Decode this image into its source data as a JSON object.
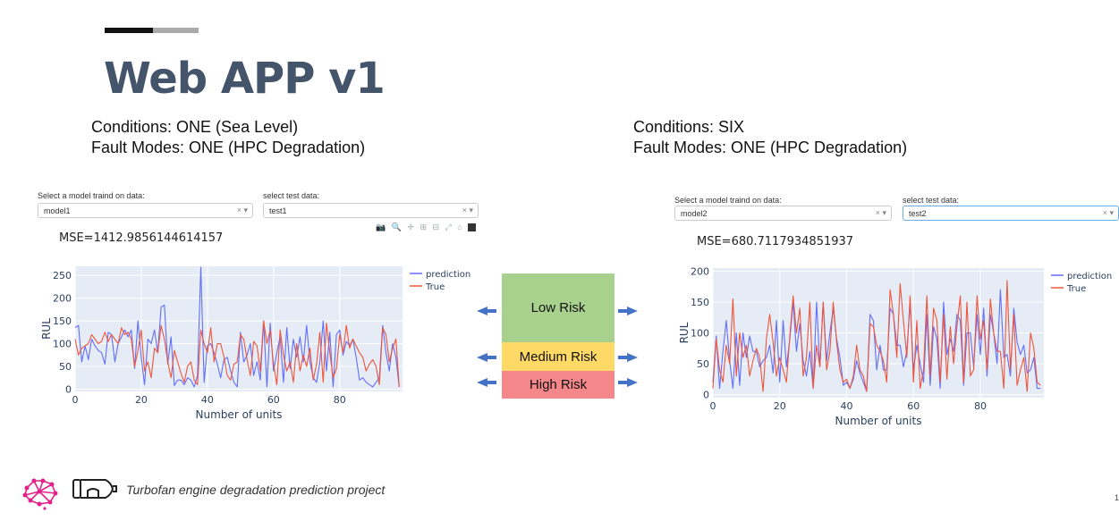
{
  "slide": {
    "title": "Web APP v1",
    "footer": "Turbofan engine degradation prediction project",
    "page_number": "1"
  },
  "left": {
    "conditions": "Conditions: ONE (Sea Level)",
    "fault_modes": "Fault Modes: ONE (HPC Degradation)",
    "model_label": "Select a model traind on data:",
    "model_value": "model1",
    "test_label": "select test data:",
    "test_value": "test1",
    "mse": "MSE=1412.9856144614157",
    "select_icons": "× ▾"
  },
  "right": {
    "conditions": "Conditions: SIX",
    "fault_modes": "Fault Modes: ONE (HPC Degradation)",
    "model_label": "Select a model traind on data:",
    "model_value": "model2",
    "test_label": "select test data:",
    "test_value": "test2",
    "mse": "MSE=680.7117934851937",
    "select_icons": "× ▾"
  },
  "toolbar_icons": "📷 🔍 ✛ ⊞ ⊟ ⤢ ⌂",
  "risk": {
    "levels": [
      {
        "label": "Low Risk",
        "color": "#a9d18e"
      },
      {
        "label": "Medium Risk",
        "color": "#ffd966"
      },
      {
        "label": "High Risk",
        "color": "#f4878a"
      }
    ],
    "arrow_color": "#4472c4"
  },
  "colors": {
    "prediction": "#636efa",
    "true": "#ef553b",
    "plot_bg": "#e5ecf6",
    "title": "#44546a"
  },
  "chart_data": [
    {
      "type": "line",
      "xlabel": "Number of units",
      "ylabel": "RUL",
      "xlim": [
        0,
        99
      ],
      "ylim": [
        -5,
        270
      ],
      "xticks": [
        0,
        20,
        40,
        60,
        80
      ],
      "yticks": [
        0,
        50,
        100,
        150,
        200,
        250
      ],
      "legend_position": "top-right",
      "series": [
        {
          "name": "prediction",
          "values": [
            135,
            140,
            60,
            95,
            65,
            110,
            95,
            85,
            80,
            55,
            125,
            120,
            60,
            100,
            115,
            130,
            115,
            130,
            45,
            150,
            70,
            10,
            110,
            100,
            130,
            80,
            180,
            185,
            55,
            115,
            8,
            20,
            20,
            10,
            25,
            20,
            5,
            30,
            268,
            15,
            95,
            100,
            80,
            55,
            25,
            65,
            70,
            40,
            15,
            5,
            125,
            60,
            75,
            100,
            30,
            60,
            20,
            150,
            5,
            145,
            40,
            80,
            115,
            15,
            135,
            45,
            110,
            70,
            115,
            60,
            140,
            60,
            25,
            15,
            60,
            150,
            40,
            125,
            5,
            120,
            130,
            75,
            105,
            95,
            110,
            70,
            20,
            25,
            15,
            10,
            5,
            15,
            25,
            140,
            80,
            40,
            100,
            70,
            5
          ]
        },
        {
          "name": "True",
          "values": [
            110,
            75,
            90,
            95,
            100,
            120,
            110,
            100,
            105,
            125,
            105,
            120,
            110,
            100,
            135,
            120,
            125,
            110,
            50,
            85,
            130,
            40,
            60,
            25,
            90,
            80,
            140,
            110,
            60,
            25,
            85,
            60,
            35,
            15,
            50,
            60,
            20,
            10,
            130,
            100,
            80,
            135,
            60,
            100,
            100,
            70,
            30,
            20,
            55,
            60,
            120,
            110,
            65,
            30,
            105,
            95,
            40,
            150,
            100,
            130,
            55,
            10,
            130,
            75,
            40,
            60,
            15,
            100,
            40,
            75,
            50,
            90,
            20,
            55,
            125,
            15,
            145,
            80,
            25,
            45,
            120,
            80,
            140,
            90,
            110,
            95,
            80,
            70,
            40,
            55,
            65,
            50,
            10,
            135,
            120,
            60,
            90,
            110,
            5
          ]
        }
      ]
    },
    {
      "type": "line",
      "xlabel": "Number of units",
      "ylabel": "RUL",
      "xlim": [
        0,
        99
      ],
      "ylim": [
        -5,
        205
      ],
      "xticks": [
        0,
        20,
        40,
        60,
        80
      ],
      "yticks": [
        0,
        50,
        100,
        150,
        200
      ],
      "legend_position": "top-right",
      "series": [
        {
          "name": "prediction",
          "values": [
            20,
            95,
            10,
            70,
            120,
            55,
            10,
            100,
            15,
            100,
            60,
            95,
            70,
            70,
            45,
            55,
            60,
            80,
            35,
            120,
            20,
            120,
            45,
            90,
            150,
            70,
            115,
            55,
            30,
            70,
            10,
            150,
            45,
            150,
            55,
            100,
            140,
            90,
            60,
            15,
            20,
            10,
            25,
            55,
            35,
            20,
            5,
            130,
            120,
            40,
            80,
            40,
            40,
            140,
            130,
            80,
            80,
            45,
            70,
            150,
            40,
            80,
            50,
            20,
            130,
            15,
            110,
            90,
            10,
            150,
            65,
            90,
            70,
            130,
            120,
            15,
            100,
            100,
            45,
            130,
            65,
            140,
            30,
            130,
            100,
            50,
            170,
            60,
            65,
            30,
            140,
            85,
            65,
            80,
            35,
            40,
            60,
            10,
            10
          ]
        },
        {
          "name": "True",
          "values": [
            10,
            90,
            40,
            20,
            80,
            50,
            155,
            30,
            100,
            60,
            80,
            30,
            55,
            75,
            60,
            5,
            90,
            130,
            85,
            30,
            60,
            40,
            20,
            95,
            160,
            100,
            140,
            30,
            60,
            150,
            10,
            80,
            45,
            150,
            40,
            70,
            150,
            85,
            40,
            20,
            25,
            10,
            30,
            80,
            40,
            30,
            5,
            115,
            110,
            80,
            70,
            55,
            20,
            170,
            130,
            60,
            180,
            120,
            60,
            160,
            20,
            120,
            10,
            40,
            160,
            30,
            140,
            120,
            20,
            130,
            25,
            110,
            50,
            110,
            160,
            20,
            150,
            30,
            40,
            160,
            90,
            120,
            40,
            155,
            100,
            70,
            70,
            10,
            185,
            40,
            130,
            15,
            40,
            60,
            5,
            100,
            75,
            20,
            15
          ]
        }
      ]
    }
  ]
}
